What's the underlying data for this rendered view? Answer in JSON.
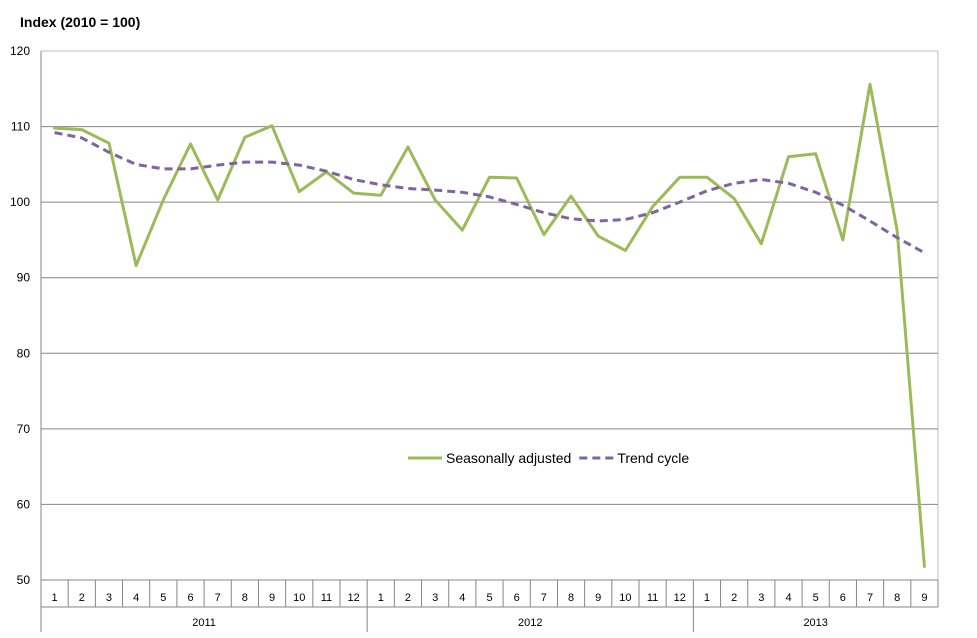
{
  "chart_data": {
    "type": "line",
    "title": "",
    "ylabel": "Index (2010 = 100)",
    "xlabel": "",
    "ylim": [
      50,
      120
    ],
    "yticks": [
      50,
      60,
      70,
      80,
      90,
      100,
      110,
      120
    ],
    "grid": true,
    "legend_position": "center",
    "x": [
      "1",
      "2",
      "3",
      "4",
      "5",
      "6",
      "7",
      "8",
      "9",
      "10",
      "11",
      "12",
      "1",
      "2",
      "3",
      "4",
      "5",
      "6",
      "7",
      "8",
      "9",
      "10",
      "11",
      "12",
      "1",
      "2",
      "3",
      "4",
      "5",
      "6",
      "7",
      "8",
      "9"
    ],
    "x_groups": [
      {
        "label": "2011",
        "count": 12
      },
      {
        "label": "2012",
        "count": 12
      },
      {
        "label": "2013",
        "count": 9
      }
    ],
    "series": [
      {
        "name": "Seasonally adjusted",
        "color": "#9bbb59",
        "style": "solid",
        "values": [
          109.8,
          109.6,
          107.8,
          91.6,
          100.3,
          107.7,
          100.3,
          108.6,
          110.1,
          101.4,
          104.0,
          101.2,
          100.9,
          107.3,
          100.3,
          96.3,
          103.3,
          103.2,
          95.7,
          100.8,
          95.5,
          93.6,
          99.4,
          103.3,
          103.3,
          100.5,
          94.5,
          106.0,
          106.4,
          95.0,
          115.6,
          96.2,
          51.8
        ]
      },
      {
        "name": "Trend cycle",
        "color": "#8064a2",
        "style": "dashed",
        "values": [
          109.2,
          108.5,
          106.6,
          105.0,
          104.4,
          104.4,
          104.9,
          105.3,
          105.3,
          104.9,
          104.1,
          103.0,
          102.3,
          101.8,
          101.6,
          101.3,
          100.7,
          99.7,
          98.6,
          97.8,
          97.5,
          97.7,
          98.6,
          100.0,
          101.5,
          102.5,
          103.0,
          102.5,
          101.3,
          99.6,
          97.5,
          95.3,
          93.3
        ]
      }
    ]
  }
}
